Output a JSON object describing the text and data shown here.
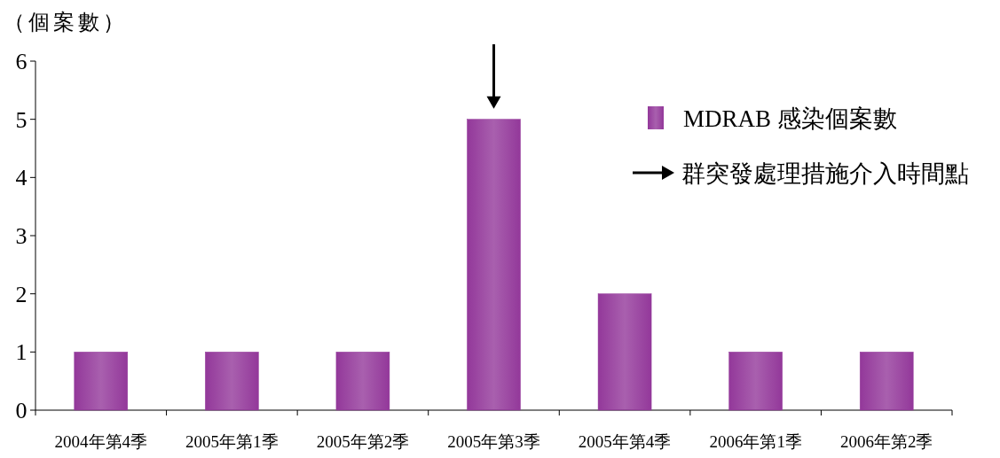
{
  "chart_data": {
    "type": "bar",
    "ylabel": "（個案數）",
    "categories": [
      "2004年第4季",
      "2005年第1季",
      "2005年第2季",
      "2005年第3季",
      "2005年第4季",
      "2006年第1季",
      "2006年第2季"
    ],
    "series": [
      {
        "name": "MDRAB 感染個案數",
        "color": "#93389a",
        "values": [
          1,
          1,
          1,
          5,
          2,
          1,
          1
        ]
      }
    ],
    "ylim": [
      0,
      6
    ],
    "yticks": [
      0,
      1,
      2,
      3,
      4,
      5,
      6
    ],
    "grid": false,
    "legend": "top right",
    "annotations": [
      "群突發處理措施介入時間點"
    ]
  }
}
